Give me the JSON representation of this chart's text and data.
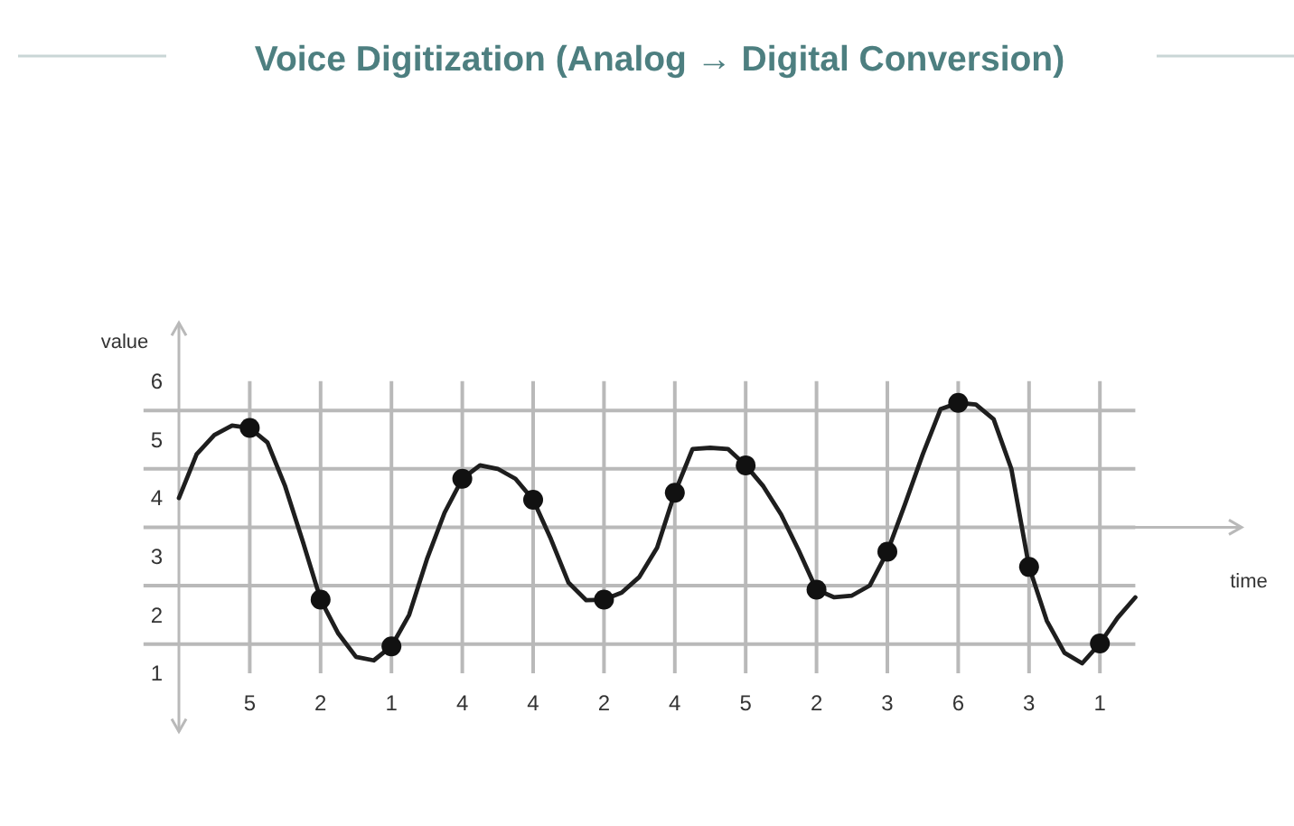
{
  "chart_data": {
    "type": "line",
    "title": "Voice Digitization (Analog → Digital Conversion)",
    "xlabel": "time",
    "ylabel": "value",
    "categories": [
      null,
      null,
      null,
      null,
      "5",
      null,
      null,
      null,
      "2",
      null,
      null,
      null,
      "1",
      null,
      null,
      null,
      "4",
      null,
      null,
      null,
      "4",
      null,
      null,
      null,
      "2",
      null,
      null,
      null,
      "4",
      null,
      null,
      null,
      "5",
      null,
      null,
      null,
      "2",
      null,
      null,
      null,
      "3",
      null,
      null,
      null,
      "6",
      null,
      null,
      null,
      "3",
      null,
      null,
      null,
      "1",
      null,
      null,
      null,
      null,
      null,
      null,
      null,
      null
    ],
    "ylim": [
      0,
      7
    ],
    "yticks": [
      1,
      2,
      3,
      4,
      5,
      6,
      {
        "value": 1.5,
        "label": null
      },
      {
        "value": 2.5,
        "label": null
      },
      {
        "value": 3.5,
        "label": null
      },
      {
        "value": 4.5,
        "label": null
      },
      {
        "value": 5.5,
        "label": null
      }
    ],
    "grid": true,
    "ref_lines": [
      {
        "axis": "y",
        "value": 3.5,
        "color": "#b9b9b9"
      }
    ],
    "series": [
      {
        "color": "#1e1e1e",
        "values": [
          4.0,
          4.75,
          5.08,
          5.24,
          5.2,
          4.95,
          4.2,
          3.25,
          2.26,
          1.68,
          1.28,
          1.22,
          1.46,
          2.0,
          2.95,
          3.75,
          4.33,
          4.56,
          4.5,
          4.33,
          3.97,
          3.3,
          2.55,
          2.25,
          2.26,
          2.38,
          2.65,
          3.15,
          4.09,
          4.84,
          4.86,
          4.84,
          4.56,
          4.2,
          3.72,
          3.1,
          2.43,
          2.3,
          2.33,
          2.5,
          3.08,
          3.9,
          4.75,
          5.52,
          5.63,
          5.6,
          5.35,
          4.5,
          2.82,
          1.9,
          1.35,
          1.17,
          1.51,
          1.95,
          2.3,
          null,
          null,
          null,
          null,
          null,
          null
        ]
      },
      {
        "type": "scatter",
        "color": "#111111",
        "marker": "circle",
        "values": [
          null,
          null,
          null,
          null,
          5.2,
          null,
          null,
          null,
          2.26,
          null,
          null,
          null,
          1.46,
          null,
          null,
          null,
          4.33,
          null,
          null,
          null,
          3.97,
          null,
          null,
          null,
          2.26,
          null,
          null,
          null,
          4.09,
          null,
          null,
          null,
          4.56,
          null,
          null,
          null,
          2.43,
          null,
          null,
          null,
          3.08,
          null,
          null,
          null,
          5.63,
          null,
          null,
          null,
          2.82,
          null,
          null,
          null,
          1.51,
          null,
          null,
          null,
          null,
          null,
          null,
          null,
          null
        ]
      }
    ]
  }
}
